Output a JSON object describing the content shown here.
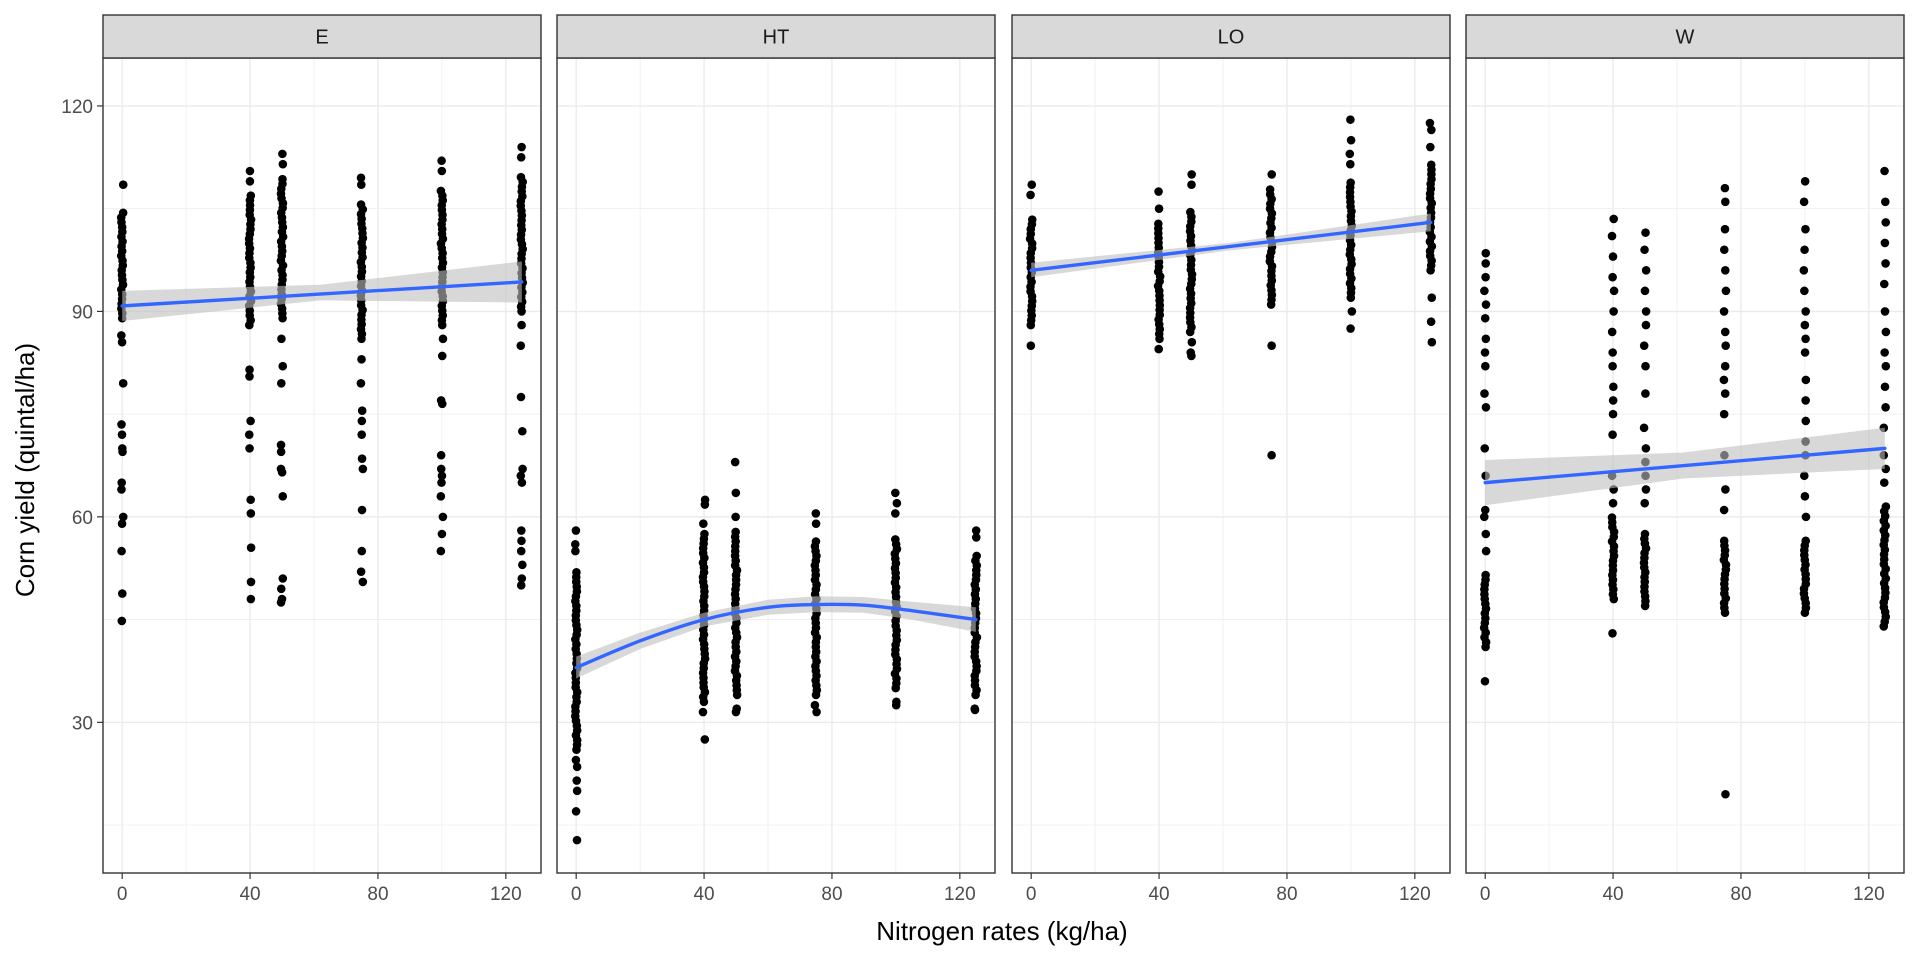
{
  "chart_data": {
    "type": "scatter",
    "facet_by": "location",
    "xlabel": "Nitrogen rates (kg/ha)",
    "ylabel": "Corn yield (quintal/ha)",
    "xlim": [
      -6,
      131
    ],
    "ylim": [
      8,
      127
    ],
    "x_ticks": [
      0,
      40,
      80,
      120
    ],
    "x_tick_labels": [
      "0",
      "40",
      "80",
      "120"
    ],
    "y_ticks": [
      30,
      60,
      90,
      120
    ],
    "y_tick_labels": [
      "30",
      "60",
      "90",
      "120"
    ],
    "grid": true,
    "legend": "none",
    "colors": {
      "points": "#000000",
      "smooth_line": "#3366FF",
      "ribbon": "#BEBEBE",
      "strip": "#D9D9D9",
      "grid": "#EBEBEB",
      "panel_border": "#333333"
    },
    "facets": [
      {
        "name": "E",
        "smooth": "linear",
        "line": [
          [
            0,
            90.8
          ],
          [
            125,
            94.3
          ]
        ],
        "band": [
          [
            0,
            88.6,
            93.0
          ],
          [
            62,
            91.6,
            93.9
          ],
          [
            125,
            91.3,
            97.3
          ]
        ],
        "points": [
          {
            "x": 0,
            "lo": 89,
            "hi": 105,
            "extra": [
              108.5,
              86.5,
              85.5,
              79.5,
              73.5,
              72,
              70,
              69.5,
              65,
              64,
              60,
              59,
              55,
              48.8,
              44.8
            ]
          },
          {
            "x": 40,
            "lo": 88,
            "hi": 107,
            "extra": [
              110.5,
              109,
              81.5,
              80.5,
              74,
              72,
              70,
              62.5,
              60.5,
              55.5,
              50.5,
              48
            ]
          },
          {
            "x": 50,
            "lo": 89,
            "hi": 110,
            "extra": [
              113,
              111.5,
              86,
              82,
              79.5,
              70.5,
              69.5,
              67,
              66.5,
              63,
              51,
              49.5,
              48,
              47.5
            ]
          },
          {
            "x": 75,
            "lo": 86,
            "hi": 106,
            "extra": [
              109.5,
              108.5,
              83,
              79.5,
              75.5,
              74,
              72,
              68.5,
              67,
              61,
              55,
              52,
              50.5
            ]
          },
          {
            "x": 100,
            "lo": 88,
            "hi": 108,
            "extra": [
              112,
              110.5,
              86,
              83.5,
              77,
              76.5,
              69,
              67,
              66,
              65,
              63,
              60,
              57.5,
              55
            ]
          },
          {
            "x": 125,
            "lo": 90,
            "hi": 110,
            "extra": [
              114,
              112.5,
              88,
              85,
              77.5,
              72.5,
              67,
              66,
              65,
              58,
              56.5,
              55,
              53,
              51,
              50
            ]
          }
        ]
      },
      {
        "name": "HT",
        "smooth": "loess",
        "line": [
          [
            0,
            38.0
          ],
          [
            20,
            41.9
          ],
          [
            40,
            45.0
          ],
          [
            60,
            46.8
          ],
          [
            75,
            47.2
          ],
          [
            90,
            47.1
          ],
          [
            105,
            46.3
          ],
          [
            125,
            45.0
          ]
        ],
        "band": [
          [
            0,
            36.4,
            39.6
          ],
          [
            20,
            40.7,
            43.1
          ],
          [
            40,
            44.0,
            46.0
          ],
          [
            60,
            45.7,
            47.9
          ],
          [
            75,
            46.1,
            48.4
          ],
          [
            90,
            46.0,
            48.3
          ],
          [
            105,
            45.0,
            47.6
          ],
          [
            125,
            43.2,
            46.8
          ]
        ],
        "points": [
          {
            "x": 0,
            "lo": 26,
            "hi": 52,
            "extra": [
              58,
              56,
              55,
              24.5,
              23.5,
              21.5,
              20,
              17,
              12.8
            ]
          },
          {
            "x": 40,
            "lo": 33,
            "hi": 58,
            "extra": [
              62.5,
              61.8,
              59,
              31.5,
              27.5
            ]
          },
          {
            "x": 50,
            "lo": 34,
            "hi": 58,
            "extra": [
              68,
              63.5,
              60,
              32,
              31.5
            ]
          },
          {
            "x": 75,
            "lo": 34,
            "hi": 57,
            "extra": [
              60.5,
              59,
              32.5,
              31.5
            ]
          },
          {
            "x": 100,
            "lo": 35,
            "hi": 57,
            "extra": [
              63.5,
              62,
              60.5,
              33,
              32.5
            ]
          },
          {
            "x": 125,
            "lo": 34,
            "hi": 55,
            "extra": [
              58,
              57,
              32,
              31.8
            ]
          }
        ]
      },
      {
        "name": "LO",
        "smooth": "linear",
        "line": [
          [
            0,
            96.0
          ],
          [
            125,
            103.0
          ]
        ],
        "band": [
          [
            0,
            95.0,
            97.1
          ],
          [
            62,
            98.9,
            100.0
          ],
          [
            125,
            101.7,
            104.3
          ]
        ],
        "points": [
          {
            "x": 0,
            "lo": 88,
            "hi": 104,
            "extra": [
              108.5,
              107,
              85
            ]
          },
          {
            "x": 40,
            "lo": 86,
            "hi": 103,
            "extra": [
              107.5,
              105,
              84.5
            ]
          },
          {
            "x": 50,
            "lo": 87,
            "hi": 105,
            "extra": [
              110,
              108.5,
              85.5,
              84,
              83.5
            ]
          },
          {
            "x": 75,
            "lo": 91,
            "hi": 108,
            "extra": [
              110,
              85,
              69
            ]
          },
          {
            "x": 100,
            "lo": 92,
            "hi": 109,
            "extra": [
              118,
              115,
              113,
              111.5,
              90,
              87.5
            ]
          },
          {
            "x": 125,
            "lo": 96,
            "hi": 112,
            "extra": [
              117.5,
              116.5,
              114,
              92,
              88.5,
              85.5
            ]
          }
        ]
      },
      {
        "name": "W",
        "smooth": "linear",
        "line": [
          [
            0,
            65.0
          ],
          [
            125,
            70.0
          ]
        ],
        "band": [
          [
            0,
            61.7,
            68.3
          ],
          [
            62,
            65.6,
            69.4
          ],
          [
            125,
            67.0,
            73.0
          ]
        ],
        "points": [
          {
            "x": 0,
            "lo": 41,
            "hi": 52,
            "extra": [
              98.5,
              97,
              95,
              93,
              91,
              89,
              86,
              84,
              82,
              78,
              76,
              70,
              66,
              61,
              60,
              57.5,
              55,
              36
            ]
          },
          {
            "x": 40,
            "lo": 48,
            "hi": 60,
            "extra": [
              103.5,
              101,
              98,
              95,
              93,
              90,
              87,
              84,
              82,
              79,
              77,
              75,
              72,
              66,
              64,
              62,
              43
            ]
          },
          {
            "x": 50,
            "lo": 47,
            "hi": 58,
            "extra": [
              101.5,
              99,
              96,
              93,
              90,
              88,
              85,
              82,
              78,
              73,
              70,
              68,
              66,
              64,
              62
            ]
          },
          {
            "x": 75,
            "lo": 46,
            "hi": 57,
            "extra": [
              108,
              106,
              102,
              99,
              96,
              93,
              90,
              87,
              85,
              82,
              80,
              78,
              75,
              69,
              64,
              61,
              19.5
            ]
          },
          {
            "x": 100,
            "lo": 46,
            "hi": 57,
            "extra": [
              109,
              106,
              102,
              99,
              96,
              93,
              90,
              88,
              86,
              84,
              80,
              77,
              74,
              71,
              69,
              66,
              63,
              60
            ]
          },
          {
            "x": 125,
            "lo": 44,
            "hi": 62,
            "extra": [
              110.5,
              106,
              103,
              100,
              97,
              94,
              90,
              87,
              84,
              82,
              79,
              76,
              73,
              69,
              67,
              65
            ]
          }
        ]
      }
    ]
  }
}
